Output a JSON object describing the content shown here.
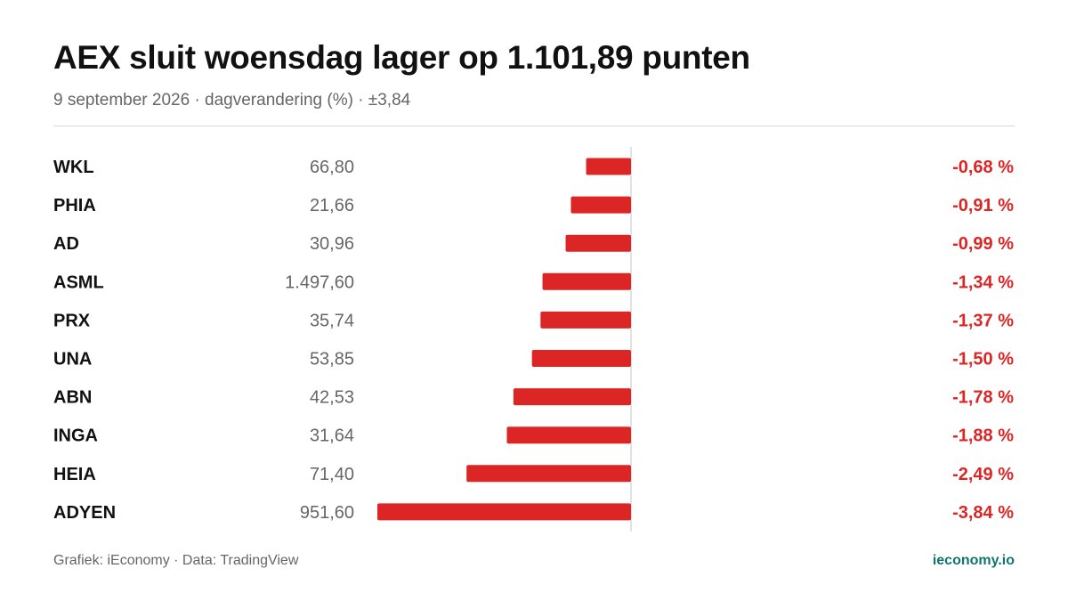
{
  "header": {
    "title": "AEX sluit woensdag lager op 1.101,89 punten",
    "subtitle": "9 september 2026 · dagverandering (%) · ±3,84"
  },
  "footer": {
    "source": "Grafiek: iEconomy · Data: TradingView",
    "brand": "ieconomy.io"
  },
  "colors": {
    "negative": "#dc2626",
    "ticker": "#111111",
    "price": "#666666",
    "axis": "#d8d8d8",
    "brand": "#0f766e"
  },
  "chart_data": {
    "type": "bar",
    "orientation": "horizontal",
    "xlim": [
      -3.84,
      3.84
    ],
    "grid": false,
    "categories": [
      "WKL",
      "PHIA",
      "AD",
      "ASML",
      "PRX",
      "UNA",
      "ABN",
      "INGA",
      "HEIA",
      "ADYEN"
    ],
    "prices": [
      "66,80",
      "21,66",
      "30,96",
      "1.497,60",
      "35,74",
      "53,85",
      "42,53",
      "31,64",
      "71,40",
      "951,60"
    ],
    "values": [
      -0.68,
      -0.91,
      -0.99,
      -1.34,
      -1.37,
      -1.5,
      -1.78,
      -1.88,
      -2.49,
      -3.84
    ],
    "value_labels": [
      "-0,68 %",
      "-0,91 %",
      "-0,99 %",
      "-1,34 %",
      "-1,37 %",
      "-1,50 %",
      "-1,78 %",
      "-1,88 %",
      "-2,49 %",
      "-3,84 %"
    ]
  }
}
